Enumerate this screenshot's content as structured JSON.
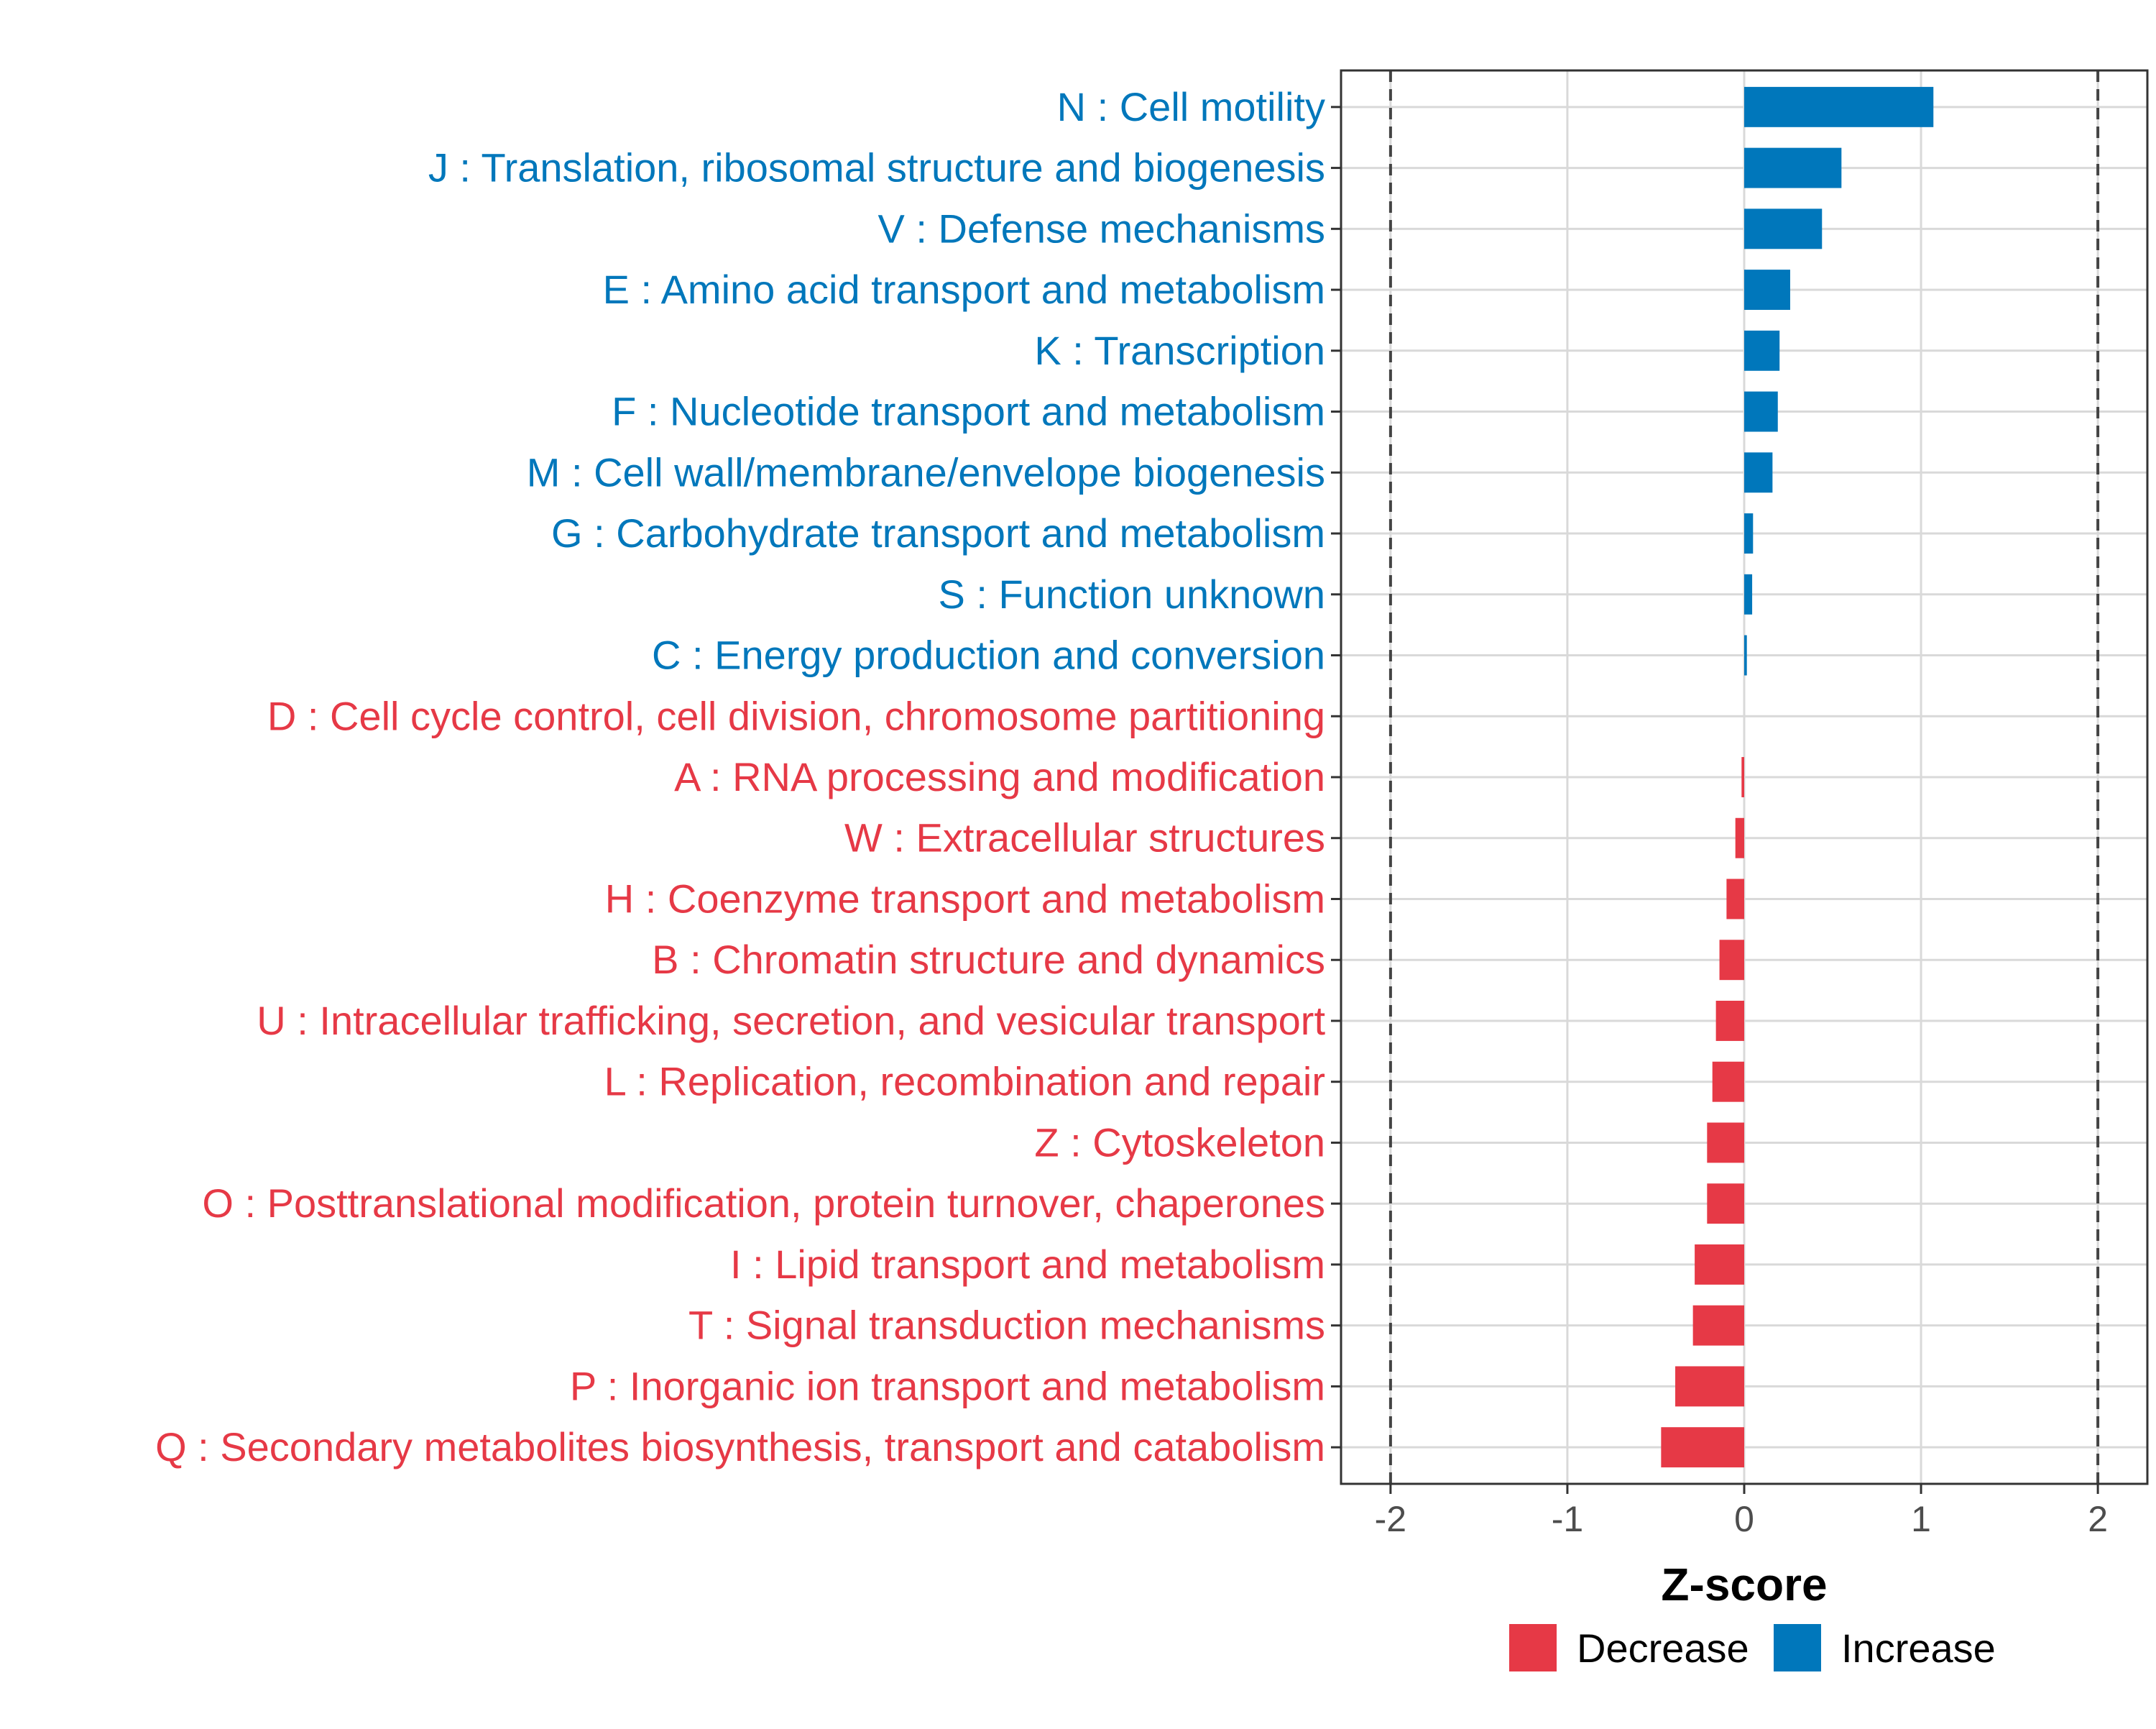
{
  "colors": {
    "increase": "#0077BB",
    "decrease": "#E63946",
    "grid": "#d9d9d9",
    "refline": "#444444",
    "panel_border": "#333333",
    "tick_text": "#4d4d4d"
  },
  "chart_data": {
    "type": "bar",
    "orientation": "horizontal",
    "title": "",
    "xlabel": "Z-score",
    "ylabel": "",
    "xlim": [
      -2.28,
      2.28
    ],
    "xticks": [
      -2,
      -1,
      0,
      1,
      2
    ],
    "xtick_labels": [
      "-2",
      "-1",
      "0",
      "1",
      "2"
    ],
    "reference_lines": [
      -2,
      2
    ],
    "grid": true,
    "legend": {
      "position": "bottom",
      "entries": [
        {
          "label": "Decrease",
          "group": "decrease"
        },
        {
          "label": "Increase",
          "group": "increase"
        }
      ]
    },
    "categories": [
      "N : Cell motility",
      "J : Translation, ribosomal structure and biogenesis",
      "V : Defense mechanisms",
      "E : Amino acid transport and metabolism",
      "K : Transcription",
      "F : Nucleotide transport and metabolism",
      "M : Cell wall/membrane/envelope biogenesis",
      "G : Carbohydrate transport and metabolism",
      "S : Function unknown",
      "C : Energy production and conversion",
      "D : Cell cycle control, cell division, chromosome partitioning",
      "A : RNA processing and modification",
      "W : Extracellular structures",
      "H : Coenzyme transport and metabolism",
      "B : Chromatin structure and dynamics",
      "U : Intracellular trafficking, secretion, and vesicular transport",
      "L : Replication, recombination and repair",
      "Z : Cytoskeleton",
      "O : Posttranslational modification, protein turnover, chaperones",
      "I : Lipid transport and metabolism",
      "T : Signal transduction mechanisms",
      "P : Inorganic ion transport and metabolism",
      "Q : Secondary metabolites biosynthesis, transport and catabolism"
    ],
    "values": [
      1.07,
      0.55,
      0.44,
      0.26,
      0.2,
      0.19,
      0.16,
      0.05,
      0.045,
      0.015,
      0.0,
      -0.015,
      -0.05,
      -0.1,
      -0.14,
      -0.16,
      -0.18,
      -0.21,
      -0.21,
      -0.28,
      -0.29,
      -0.39,
      -0.47
    ],
    "groups": [
      "increase",
      "increase",
      "increase",
      "increase",
      "increase",
      "increase",
      "increase",
      "increase",
      "increase",
      "increase",
      "decrease",
      "decrease",
      "decrease",
      "decrease",
      "decrease",
      "decrease",
      "decrease",
      "decrease",
      "decrease",
      "decrease",
      "decrease",
      "decrease",
      "decrease"
    ]
  }
}
